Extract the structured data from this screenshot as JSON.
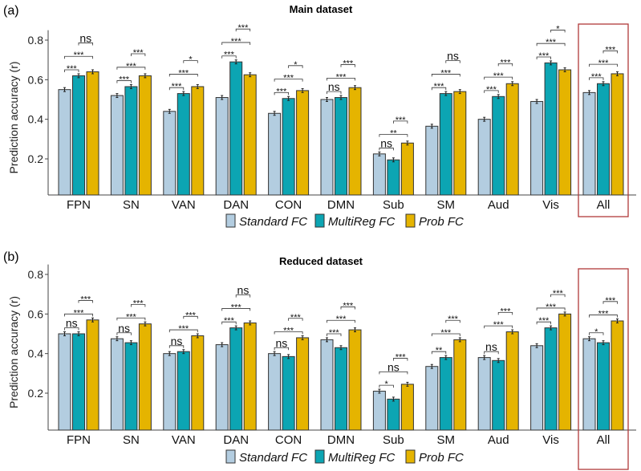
{
  "chart_data": [
    {
      "type": "bar",
      "panel_label": "(a)",
      "title": "Main dataset",
      "ylabel": "Prediction accuracy (r)",
      "xlabel": "",
      "ylim": [
        0.02,
        0.85
      ],
      "yticks": [
        "0.2",
        "0.4",
        "0.6",
        "0.8"
      ],
      "grid": false,
      "legend_position": "bottom",
      "categories": [
        "FPN",
        "SN",
        "VAN",
        "DAN",
        "CON",
        "DMN",
        "Sub",
        "SM",
        "Aud",
        "Vis",
        "All"
      ],
      "highlighted_category": "All",
      "series": [
        {
          "name": "Standard FC",
          "color": "#b3cde0",
          "values": [
            0.55,
            0.52,
            0.44,
            0.51,
            0.43,
            0.5,
            0.225,
            0.365,
            0.4,
            0.49,
            0.535
          ]
        },
        {
          "name": "MultiReg FC",
          "color": "#0ca5b3",
          "values": [
            0.62,
            0.565,
            0.53,
            0.69,
            0.505,
            0.51,
            0.195,
            0.53,
            0.515,
            0.685,
            0.58
          ]
        },
        {
          "name": "Prob FC",
          "color": "#e5b400",
          "values": [
            0.64,
            0.62,
            0.565,
            0.625,
            0.545,
            0.56,
            0.28,
            0.54,
            0.58,
            0.65,
            0.63
          ]
        }
      ],
      "significance": [
        [
          "***",
          "***",
          "ns"
        ],
        [
          "***",
          "***",
          "***"
        ],
        [
          "***",
          "***",
          "*"
        ],
        [
          "***",
          "***",
          "***"
        ],
        [
          "***",
          "***",
          "*"
        ],
        [
          "ns",
          "***",
          "***"
        ],
        [
          "ns",
          "**",
          "***"
        ],
        [
          "***",
          "***",
          "ns"
        ],
        [
          "***",
          "***",
          "***"
        ],
        [
          "***",
          "***",
          "*"
        ],
        [
          "***",
          "***",
          "***"
        ]
      ]
    },
    {
      "type": "bar",
      "panel_label": "(b)",
      "title": "Reduced dataset",
      "ylabel": "Prediction accuracy (r)",
      "xlabel": "",
      "ylim": [
        0.02,
        0.85
      ],
      "yticks": [
        "0.2",
        "0.4",
        "0.6",
        "0.8"
      ],
      "grid": false,
      "legend_position": "bottom",
      "categories": [
        "FPN",
        "SN",
        "VAN",
        "DAN",
        "CON",
        "DMN",
        "Sub",
        "SM",
        "Aud",
        "Vis",
        "All"
      ],
      "highlighted_category": "All",
      "series": [
        {
          "name": "Standard FC",
          "color": "#b3cde0",
          "values": [
            0.5,
            0.475,
            0.4,
            0.445,
            0.4,
            0.47,
            0.21,
            0.335,
            0.38,
            0.44,
            0.475
          ]
        },
        {
          "name": "MultiReg FC",
          "color": "#0ca5b3",
          "values": [
            0.5,
            0.455,
            0.41,
            0.53,
            0.385,
            0.43,
            0.17,
            0.38,
            0.365,
            0.53,
            0.455
          ]
        },
        {
          "name": "Prob FC",
          "color": "#e5b400",
          "values": [
            0.57,
            0.55,
            0.49,
            0.555,
            0.48,
            0.52,
            0.245,
            0.47,
            0.51,
            0.6,
            0.565
          ]
        }
      ],
      "significance": [
        [
          "ns",
          "***",
          "***"
        ],
        [
          "ns",
          "***",
          "***"
        ],
        [
          "ns",
          "***",
          "***"
        ],
        [
          "***",
          "***",
          "ns"
        ],
        [
          "ns",
          "***",
          "***"
        ],
        [
          "***",
          "***",
          "***"
        ],
        [
          "*",
          "ns",
          "***"
        ],
        [
          "**",
          "***",
          "***"
        ],
        [
          "ns",
          "***",
          "***"
        ],
        [
          "***",
          "***",
          "***"
        ],
        [
          "*",
          "***",
          "***"
        ]
      ]
    }
  ]
}
